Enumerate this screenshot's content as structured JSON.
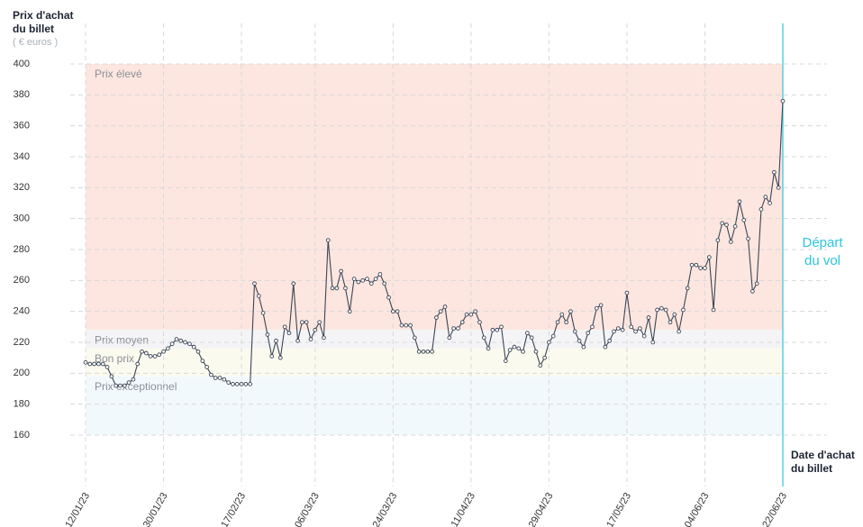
{
  "chart_data": {
    "type": "line",
    "y_label_lines": [
      "Prix d'achat",
      "du billet"
    ],
    "y_unit": "( € euros )",
    "x_label_lines": [
      "Date d'achat",
      "du billet"
    ],
    "annotation_lines": [
      "Départ",
      "du vol"
    ],
    "annotation_color": "#2bc6dd",
    "ylim": [
      160,
      400
    ],
    "yticks": [
      160,
      180,
      200,
      220,
      240,
      260,
      280,
      300,
      320,
      340,
      360,
      380,
      400
    ],
    "grid": true,
    "bands": [
      {
        "label": "Prix élevé",
        "from": 228,
        "to": 400,
        "color": "#fde6df"
      },
      {
        "label": "Prix moyen",
        "from": 216,
        "to": 228,
        "color": "#f4f4f6"
      },
      {
        "label": "Bon prix",
        "from": 198,
        "to": 216,
        "color": "#fbfaee"
      },
      {
        "label": "Prix exceptionnel",
        "from": 160,
        "to": 198,
        "color": "#f2f9fc"
      }
    ],
    "categories": [
      "12/01/23",
      null,
      null,
      null,
      null,
      null,
      null,
      null,
      null,
      null,
      null,
      null,
      null,
      null,
      null,
      null,
      null,
      null,
      "30/01/23",
      null,
      null,
      null,
      null,
      null,
      null,
      null,
      null,
      null,
      null,
      null,
      null,
      null,
      null,
      null,
      null,
      null,
      "17/02/23",
      null,
      null,
      null,
      null,
      null,
      null,
      null,
      null,
      null,
      null,
      null,
      null,
      null,
      null,
      null,
      null,
      "06/03/23",
      null,
      null,
      null,
      null,
      null,
      null,
      null,
      null,
      null,
      null,
      null,
      null,
      null,
      null,
      null,
      null,
      null,
      "24/03/23",
      null,
      null,
      null,
      null,
      null,
      null,
      null,
      null,
      null,
      null,
      null,
      null,
      null,
      null,
      null,
      null,
      null,
      "11/04/23",
      null,
      null,
      null,
      null,
      null,
      null,
      null,
      null,
      null,
      null,
      null,
      null,
      null,
      null,
      null,
      null,
      null,
      "29/04/23",
      null,
      null,
      null,
      null,
      null,
      null,
      null,
      null,
      null,
      null,
      null,
      null,
      null,
      null,
      null,
      null,
      null,
      "17/05/23",
      null,
      null,
      null,
      null,
      null,
      null,
      null,
      null,
      null,
      null,
      null,
      null,
      null,
      null,
      null,
      null,
      null,
      "04/06/23",
      null,
      null,
      null,
      null,
      null,
      null,
      null,
      null,
      null,
      null,
      null,
      null,
      null,
      null,
      null,
      null,
      null,
      "22/06/23"
    ],
    "series": [
      {
        "color": "#3b4556",
        "values": [
          207,
          206,
          206,
          206,
          206,
          204,
          198,
          192,
          192,
          192,
          194,
          196,
          206,
          214,
          213,
          211,
          211,
          212,
          214,
          216,
          219,
          222,
          221,
          220,
          219,
          217,
          214,
          208,
          204,
          199,
          197,
          197,
          196,
          194,
          193,
          193,
          193,
          193,
          193,
          258,
          250,
          239,
          225,
          211,
          221,
          210,
          230,
          226,
          258,
          221,
          233,
          233,
          222,
          228,
          233,
          223,
          286,
          255,
          255,
          266,
          255,
          240,
          261,
          259,
          260,
          261,
          258,
          261,
          264,
          258,
          249,
          240,
          240,
          231,
          231,
          231,
          223,
          214,
          214,
          214,
          214,
          236,
          240,
          243,
          223,
          229,
          229,
          233,
          238,
          238,
          240,
          233,
          223,
          216,
          228,
          228,
          230,
          208,
          215,
          217,
          216,
          214,
          226,
          223,
          214,
          205,
          210,
          220,
          224,
          233,
          238,
          233,
          240,
          227,
          221,
          217,
          226,
          230,
          242,
          244,
          217,
          221,
          227,
          229,
          228,
          252,
          230,
          227,
          229,
          224,
          236,
          220,
          241,
          242,
          241,
          233,
          238,
          227,
          241,
          255,
          270,
          270,
          268,
          268,
          275,
          241,
          286,
          297,
          296,
          285,
          295,
          311,
          299,
          287,
          253,
          258,
          306,
          314,
          310,
          330,
          320,
          376
        ]
      }
    ]
  }
}
